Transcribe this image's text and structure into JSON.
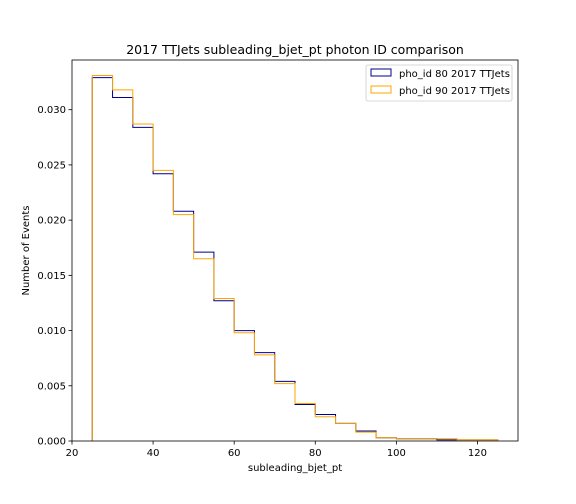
{
  "chart_data": {
    "type": "histogram",
    "title": "2017 TTJets subleading_bjet_pt photon ID comparison",
    "xlabel": "subleading_bjet_pt",
    "ylabel": "Number of Events",
    "xlim": [
      20,
      130
    ],
    "ylim": [
      0,
      0.0345
    ],
    "xticks": [
      20,
      40,
      60,
      80,
      100,
      120
    ],
    "xtick_labels": [
      "20",
      "40",
      "60",
      "80",
      "100",
      "120"
    ],
    "yticks": [
      0,
      0.005,
      0.01,
      0.015,
      0.02,
      0.025,
      0.03
    ],
    "ytick_labels": [
      "0.000",
      "0.005",
      "0.010",
      "0.015",
      "0.020",
      "0.025",
      "0.030"
    ],
    "bin_edges": [
      25,
      30,
      35,
      40,
      45,
      50,
      55,
      60,
      65,
      70,
      75,
      80,
      85,
      90,
      95,
      100,
      105,
      110,
      115,
      120,
      125
    ],
    "legend_position": "upper-right",
    "grid": false,
    "series": [
      {
        "name": "pho_id 80 2017 TTJets",
        "color": "#00008b",
        "values": [
          0.0329,
          0.0311,
          0.0284,
          0.0242,
          0.0208,
          0.0171,
          0.0127,
          0.01,
          0.008,
          0.0054,
          0.0033,
          0.0024,
          0.0016,
          0.0009,
          0.0003,
          0.0002,
          0.0002,
          0.0001,
          0.0001,
          0.0001
        ]
      },
      {
        "name": "pho_id 90 2017 TTJets",
        "color": "#ffa500",
        "values": [
          0.0331,
          0.0318,
          0.0287,
          0.0245,
          0.0205,
          0.0165,
          0.0129,
          0.0098,
          0.0078,
          0.0052,
          0.0034,
          0.0022,
          0.0016,
          0.0008,
          0.0003,
          0.0002,
          0.0002,
          0.0002,
          0.0001,
          0.0001
        ]
      }
    ]
  }
}
